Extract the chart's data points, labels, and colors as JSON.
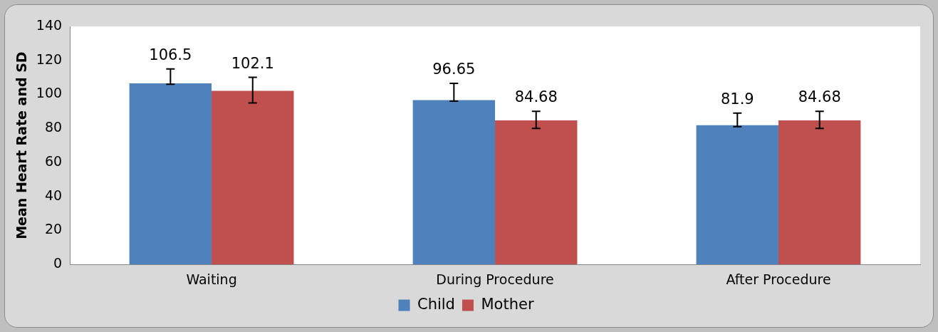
{
  "chart_data": {
    "type": "bar",
    "ylabel": "Mean Heart Rate and SD",
    "categories": [
      "Waiting",
      "During Procedure",
      "After Procedure"
    ],
    "series": [
      {
        "name": "Child",
        "color": "#4f81bd",
        "values": [
          106.5,
          96.65,
          81.9
        ],
        "errors": [
          [
            106,
            115
          ],
          [
            96,
            106.5
          ],
          [
            81,
            89
          ]
        ]
      },
      {
        "name": "Mother",
        "color": "#c0504d",
        "values": [
          102.1,
          84.68,
          84.68
        ],
        "errors": [
          [
            95,
            110
          ],
          [
            80,
            90
          ],
          [
            80,
            90
          ]
        ]
      }
    ],
    "ylim": [
      0,
      140
    ],
    "yticks": [
      0,
      20,
      40,
      60,
      80,
      100,
      120,
      140
    ],
    "grid": false,
    "legend": "bottom",
    "data_labels": true
  }
}
